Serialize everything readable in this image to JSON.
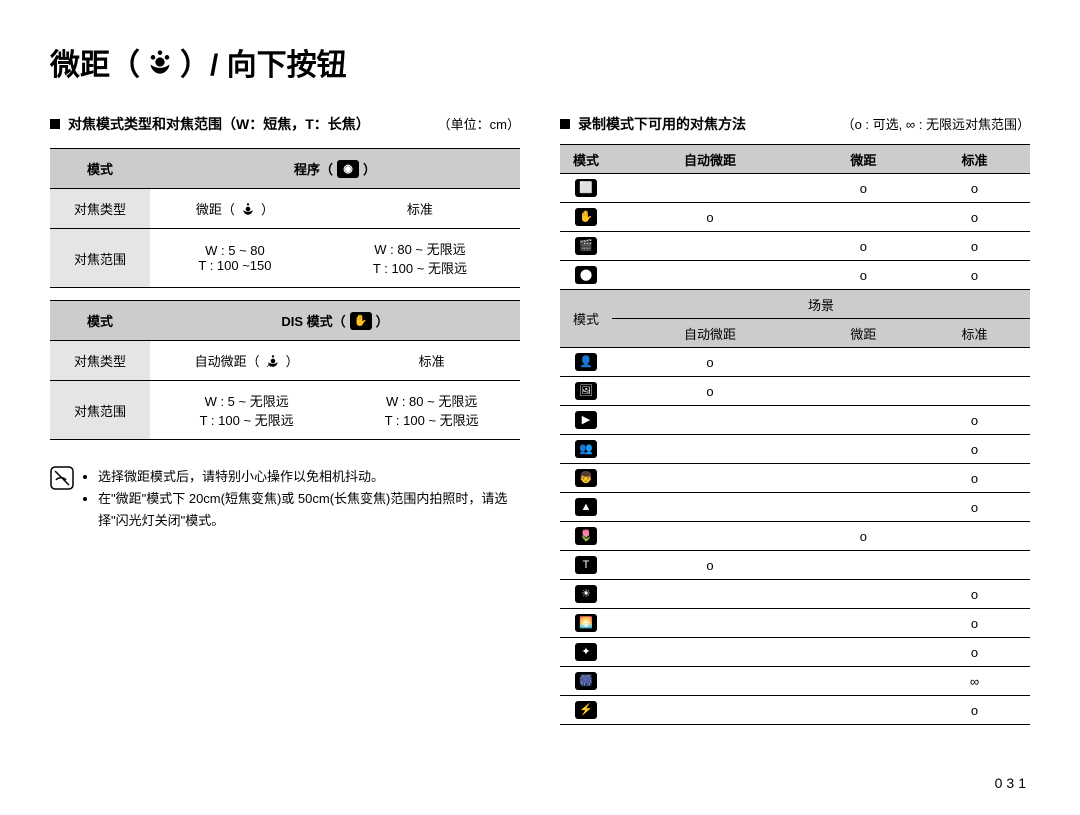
{
  "page": {
    "title_prefix": "微距（",
    "title_suffix": "）/ 向下按钮",
    "page_number": "031"
  },
  "left": {
    "heading": "对焦模式类型和对焦范围（W：短焦，T：长焦）",
    "unit": "（单位：cm）",
    "table1": {
      "header_mode": "模式",
      "header_program": "程序（",
      "header_program_close": "）",
      "row_type_label": "对焦类型",
      "row_type_macro": "微距（",
      "row_type_macro_close": "）",
      "row_type_std": "标准",
      "row_range_label": "对焦范围",
      "row_range_macro_w": "W : 5 ~ 80",
      "row_range_macro_t": "T  : 100 ~150",
      "row_range_std_w": "W : 80 ~ 无限远",
      "row_range_std_t": "T  : 100 ~ 无限远"
    },
    "table2": {
      "header_mode": "模式",
      "header_dis": "DIS 模式（",
      "header_dis_close": "）",
      "row_type_label": "对焦类型",
      "row_type_auto": "自动微距（",
      "row_type_auto_close": "）",
      "row_type_std": "标准",
      "row_range_label": "对焦范围",
      "row_range_auto_w": "W : 5 ~ 无限远",
      "row_range_auto_t": "T  : 100 ~ 无限远",
      "row_range_std_w": "W : 80 ~ 无限远",
      "row_range_std_t": "T  : 100 ~ 无限远"
    },
    "notes": {
      "n1": "选择微距模式后，请特别小心操作以免相机抖动。",
      "n2": "在\"微距\"模式下 20cm(短焦变焦)或 50cm(长焦变焦)范围内拍照时，请选择\"闪光灯关闭\"模式。"
    }
  },
  "right": {
    "heading": "录制模式下可用的对焦方法",
    "legend": "（o : 可选, ∞ : 无限远对焦范围）",
    "headers": {
      "mode": "模式",
      "auto_macro": "自动微距",
      "macro": "微距",
      "std": "标准",
      "scene": "场景"
    },
    "glyphs": {
      "r0": "⬜",
      "r1": "✋",
      "r2": "🎬",
      "r3": "⬤",
      "s0": "👤",
      "s1": "🖼",
      "s2": "▶",
      "s3": "👥",
      "s4": "👦",
      "s5": "▲",
      "s6": "🌷",
      "s7": "T",
      "s8": "☀",
      "s9": "🌅",
      "s10": "✦",
      "s11": "🎆",
      "s12": "⚡"
    },
    "rows_top": [
      {
        "auto": "",
        "macro": "o",
        "std": "o"
      },
      {
        "auto": "o",
        "macro": "",
        "std": "o"
      },
      {
        "auto": "",
        "macro": "o",
        "std": "o"
      },
      {
        "auto": "",
        "macro": "o",
        "std": "o"
      }
    ],
    "rows_scene": [
      {
        "auto": "o",
        "macro": "",
        "std": ""
      },
      {
        "auto": "o",
        "macro": "",
        "std": ""
      },
      {
        "auto": "",
        "macro": "",
        "std": "o"
      },
      {
        "auto": "",
        "macro": "",
        "std": "o"
      },
      {
        "auto": "",
        "macro": "",
        "std": "o"
      },
      {
        "auto": "",
        "macro": "",
        "std": "o"
      },
      {
        "auto": "",
        "macro": "o",
        "std": ""
      },
      {
        "auto": "o",
        "macro": "",
        "std": ""
      },
      {
        "auto": "",
        "macro": "",
        "std": "o"
      },
      {
        "auto": "",
        "macro": "",
        "std": "o"
      },
      {
        "auto": "",
        "macro": "",
        "std": "o"
      },
      {
        "auto": "",
        "macro": "",
        "std": "∞"
      },
      {
        "auto": "",
        "macro": "",
        "std": "o"
      }
    ]
  },
  "colors": {
    "header_bg": "#cccccc",
    "firstcol_bg": "#e5e5e5",
    "border": "#000000",
    "text": "#000000",
    "bg": "#ffffff"
  }
}
